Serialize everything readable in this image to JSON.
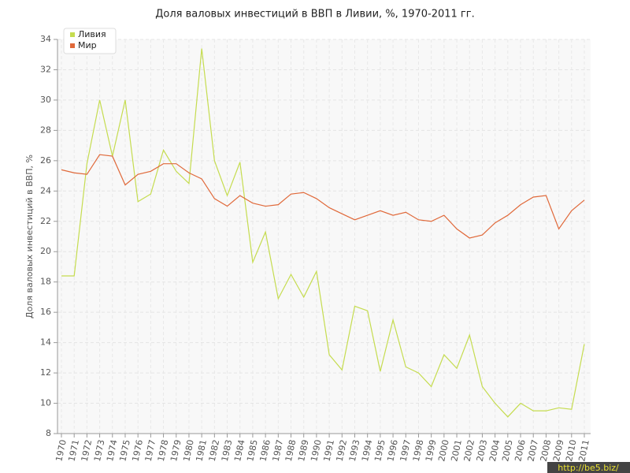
{
  "chart_data": {
    "type": "line",
    "title": "Доля валовых инвестиций в ВВП в Ливии, %, 1970-2011 гг.",
    "y_label": "Доля валовых инвестиций в ВВП, %",
    "watermark": "http://be5.biz/",
    "categories": [
      "1970",
      "1971",
      "1972",
      "1973",
      "1974",
      "1975",
      "1976",
      "1977",
      "1978",
      "1979",
      "1980",
      "1981",
      "1982",
      "1983",
      "1984",
      "1985",
      "1986",
      "1987",
      "1988",
      "1989",
      "1990",
      "1991",
      "1992",
      "1993",
      "1994",
      "1995",
      "1996",
      "1997",
      "1998",
      "1999",
      "2000",
      "2001",
      "2002",
      "2003",
      "2004",
      "2005",
      "2006",
      "2007",
      "2008",
      "2009",
      "2010",
      "2011"
    ],
    "series": [
      {
        "name": "Ливия",
        "color": "#c5dc4f",
        "values": [
          18.4,
          18.4,
          25.8,
          30.0,
          26.3,
          30.0,
          23.3,
          23.8,
          26.7,
          25.3,
          24.5,
          33.4,
          26.0,
          23.7,
          25.9,
          19.3,
          21.3,
          16.9,
          18.5,
          17.0,
          18.7,
          13.2,
          12.2,
          16.4,
          16.1,
          12.1,
          15.5,
          12.4,
          12.0,
          11.1,
          13.2,
          12.3,
          14.5,
          11.1,
          10.0,
          9.1,
          10.0,
          9.5,
          9.5,
          9.7,
          9.6,
          13.9
        ]
      },
      {
        "name": "Мир",
        "color": "#e0693a",
        "values": [
          25.4,
          25.2,
          25.1,
          26.4,
          26.3,
          24.4,
          25.1,
          25.3,
          25.8,
          25.8,
          25.2,
          24.8,
          23.5,
          23.0,
          23.7,
          23.2,
          23.0,
          23.1,
          23.8,
          23.9,
          23.5,
          22.9,
          22.5,
          22.1,
          22.4,
          22.7,
          22.4,
          22.6,
          22.1,
          22.0,
          22.4,
          21.5,
          20.9,
          21.1,
          21.9,
          22.4,
          23.1,
          23.6,
          23.7,
          21.5,
          22.7,
          23.4
        ]
      }
    ],
    "ylim": [
      8,
      34
    ],
    "yticks": [
      8,
      10,
      12,
      14,
      16,
      18,
      20,
      22,
      24,
      26,
      28,
      30,
      32,
      34
    ],
    "grid": true,
    "legend": "top-left"
  }
}
